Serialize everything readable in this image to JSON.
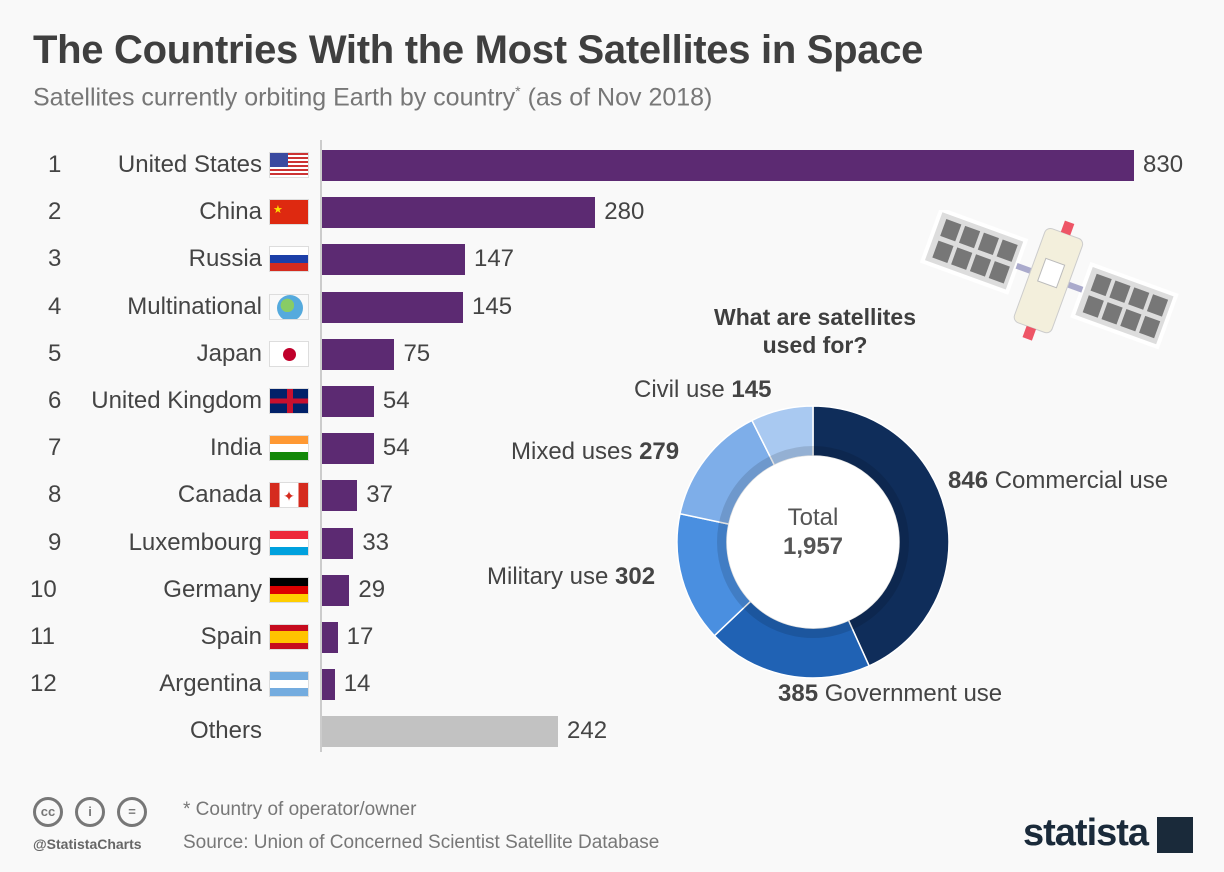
{
  "title": "The Countries With the Most Satellites in Space",
  "subtitle": "Satellites currently orbiting Earth by country",
  "subtitle_mark": "*",
  "subtitle_suffix": " (as of Nov 2018)",
  "chart_data": [
    {
      "type": "bar",
      "orientation": "horizontal",
      "title": "The Countries With the Most Satellites in Space",
      "categories": [
        "United States",
        "China",
        "Russia",
        "Multinational",
        "Japan",
        "United Kingdom",
        "India",
        "Canada",
        "Luxembourg",
        "Germany",
        "Spain",
        "Argentina",
        "Others"
      ],
      "ranks": [
        "1",
        "2",
        "3",
        "4",
        "5",
        "6",
        "7",
        "8",
        "9",
        "10",
        "11",
        "12",
        ""
      ],
      "values": [
        830,
        280,
        147,
        145,
        75,
        54,
        54,
        37,
        33,
        29,
        17,
        14,
        242
      ],
      "xlim": [
        0,
        830
      ],
      "bar_color": "#5c2a72",
      "others_color": "#c2c2c2"
    },
    {
      "type": "pie",
      "donut": true,
      "title": "What are satellites used for?",
      "categories": [
        "Commercial use",
        "Government use",
        "Military use",
        "Mixed uses",
        "Civil use"
      ],
      "values": [
        846,
        385,
        302,
        279,
        145
      ],
      "colors": [
        "#0f2d5a",
        "#2062b4",
        "#4a8fe0",
        "#7eaee9",
        "#a9c9f1"
      ],
      "center_label": "Total",
      "center_value": "1,957"
    }
  ],
  "donut_labels": [
    {
      "value": "846",
      "text": "Commercial use"
    },
    {
      "value": "385",
      "text": "Government use"
    },
    {
      "text": "Military use",
      "value": "302"
    },
    {
      "text": "Mixed uses",
      "value": "279"
    },
    {
      "text": "Civil use",
      "value": "145"
    }
  ],
  "footer": {
    "note": "* Country of operator/owner",
    "source": "Source: Union of Concerned Scientist Satellite Database",
    "handle": "@StatistaCharts",
    "logo": "statista",
    "cc": [
      "cc",
      "i",
      "="
    ]
  }
}
